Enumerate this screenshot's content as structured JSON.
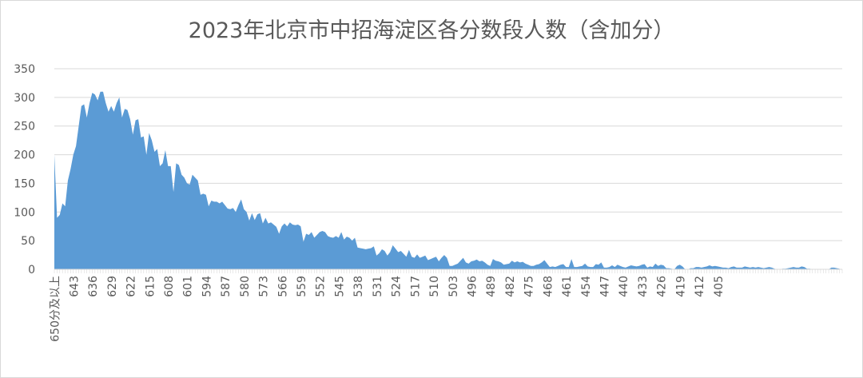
{
  "chart_data": {
    "type": "area",
    "title": "2023年北京市中招海淀区各分数段人数（含加分）",
    "xlabel": "",
    "ylabel": "",
    "ylim": [
      0,
      350
    ],
    "y_ticks": [
      0,
      50,
      100,
      150,
      200,
      250,
      300,
      350
    ],
    "grid": true,
    "legend": "none",
    "fill_color": "#5b9bd5",
    "x_tick_labels": [
      "650分及以上",
      "643",
      "636",
      "629",
      "622",
      "615",
      "608",
      "601",
      "594",
      "587",
      "580",
      "573",
      "566",
      "559",
      "552",
      "545",
      "538",
      "531",
      "524",
      "517",
      "510",
      "503",
      "496",
      "489",
      "482",
      "475",
      "468",
      "461",
      "454",
      "447",
      "440",
      "433",
      "426",
      "419",
      "412",
      "405"
    ],
    "x_first_label": "650分及以上",
    "x_start": 650,
    "x_end": 401,
    "series": [
      {
        "values": [
          200,
          90,
          95,
          115,
          110,
          155,
          175,
          200,
          215,
          250,
          285,
          288,
          265,
          290,
          308,
          305,
          295,
          310,
          310,
          290,
          275,
          285,
          275,
          290,
          300,
          265,
          280,
          278,
          262,
          235,
          260,
          262,
          230,
          232,
          200,
          238,
          225,
          205,
          210,
          180,
          185,
          208,
          180,
          180,
          135,
          185,
          182,
          165,
          160,
          150,
          148,
          165,
          160,
          155,
          130,
          132,
          130,
          110,
          120,
          118,
          118,
          115,
          118,
          112,
          106,
          105,
          107,
          100,
          112,
          122,
          105,
          100,
          85,
          98,
          86,
          96,
          98,
          80,
          90,
          80,
          82,
          78,
          74,
          62,
          75,
          80,
          75,
          82,
          78,
          77,
          78,
          75,
          48,
          62,
          60,
          65,
          55,
          60,
          65,
          67,
          65,
          58,
          56,
          55,
          58,
          55,
          65,
          52,
          57,
          55,
          50,
          55,
          38,
          37,
          36,
          35,
          36,
          37,
          40,
          24,
          28,
          35,
          32,
          24,
          30,
          42,
          36,
          30,
          32,
          27,
          22,
          34,
          22,
          20,
          26,
          20,
          22,
          24,
          16,
          18,
          20,
          22,
          14,
          20,
          25,
          20,
          6,
          6,
          8,
          10,
          15,
          20,
          12,
          10,
          14,
          15,
          17,
          14,
          15,
          12,
          8,
          6,
          18,
          15,
          14,
          12,
          8,
          9,
          10,
          15,
          12,
          14,
          12,
          13,
          10,
          8,
          6,
          6,
          8,
          9,
          12,
          16,
          10,
          4,
          5,
          4,
          6,
          8,
          9,
          4,
          4,
          18,
          4,
          4,
          5,
          6,
          10,
          5,
          4,
          4,
          9,
          8,
          12,
          3,
          3,
          4,
          7,
          4,
          8,
          6,
          4,
          3,
          5,
          7,
          6,
          5,
          6,
          8,
          9,
          3,
          5,
          4,
          10,
          6,
          8,
          7,
          2,
          2,
          1,
          0,
          6,
          8,
          5,
          0,
          0,
          2,
          2,
          4,
          4,
          3,
          4,
          5,
          7,
          5,
          6,
          5,
          4,
          3,
          3,
          2,
          4,
          5,
          3,
          3,
          3,
          5,
          4,
          3,
          4,
          3,
          4,
          3,
          2,
          3,
          4,
          3,
          1,
          0,
          0,
          1,
          1,
          2,
          3,
          4,
          3,
          3,
          5,
          4,
          1,
          1,
          0,
          0,
          0,
          0,
          0,
          0,
          0,
          3,
          3,
          2,
          1
        ]
      }
    ]
  }
}
